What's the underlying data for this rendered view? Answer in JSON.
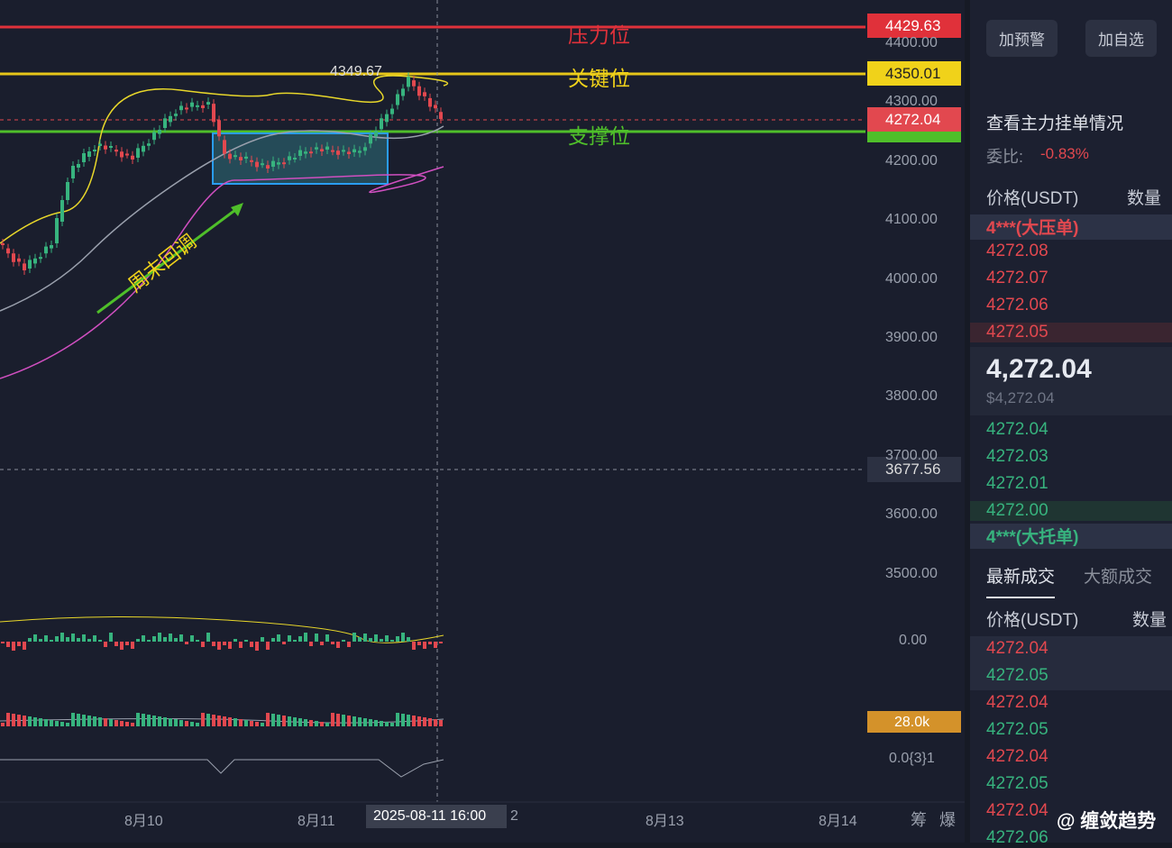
{
  "chart": {
    "levels": [
      {
        "label": "压力位",
        "price": "4429.63"
      },
      {
        "label": "关键位",
        "price": "4350.01"
      },
      {
        "label": "支撑位"
      }
    ],
    "last_price": "4272.04",
    "high_label": "4349.67",
    "annotation": "周末回调",
    "price_axis": [
      "4400.00",
      "4300.00",
      "4200.00",
      "4100.00",
      "4000.00",
      "3900.00",
      "3800.00",
      "3700.00",
      "3600.00",
      "3500.00"
    ],
    "crosshair_price": "3677.56",
    "macd_zero": "0.00",
    "volume_tag": "28.0k",
    "indicator_value": "0.0{3}1",
    "time_axis": [
      "8月10",
      "8月11",
      "2",
      "8月13",
      "8月14"
    ],
    "crosshair_time": "2025-08-11 16:00",
    "tools": [
      "筹",
      "爆"
    ]
  },
  "sidebar": {
    "buttons": [
      "加预警",
      "加自选"
    ],
    "main_orders": "查看主力挂单情况",
    "ratio_label": "委比:",
    "ratio_value": "-0.83%",
    "book_header": [
      "价格(USDT)",
      "数量"
    ],
    "big_ask": "4***(大压单)",
    "asks": [
      "4272.08",
      "4272.07",
      "4272.06",
      "4272.05"
    ],
    "mid_price": "4,272.04",
    "mid_usd": "$4,272.04",
    "bids": [
      "4272.04",
      "4272.03",
      "4272.01",
      "4272.00"
    ],
    "big_bid": "4***(大托单)",
    "tabs": [
      "最新成交",
      "大额成交"
    ],
    "trade_header": [
      "价格(USDT)",
      "数量"
    ],
    "trades": [
      "4272.04",
      "4272.05",
      "4272.04",
      "4272.05",
      "4272.04",
      "4272.05",
      "4272.04",
      "4272.06"
    ],
    "watermark": "@ 缠敛趋势"
  }
}
